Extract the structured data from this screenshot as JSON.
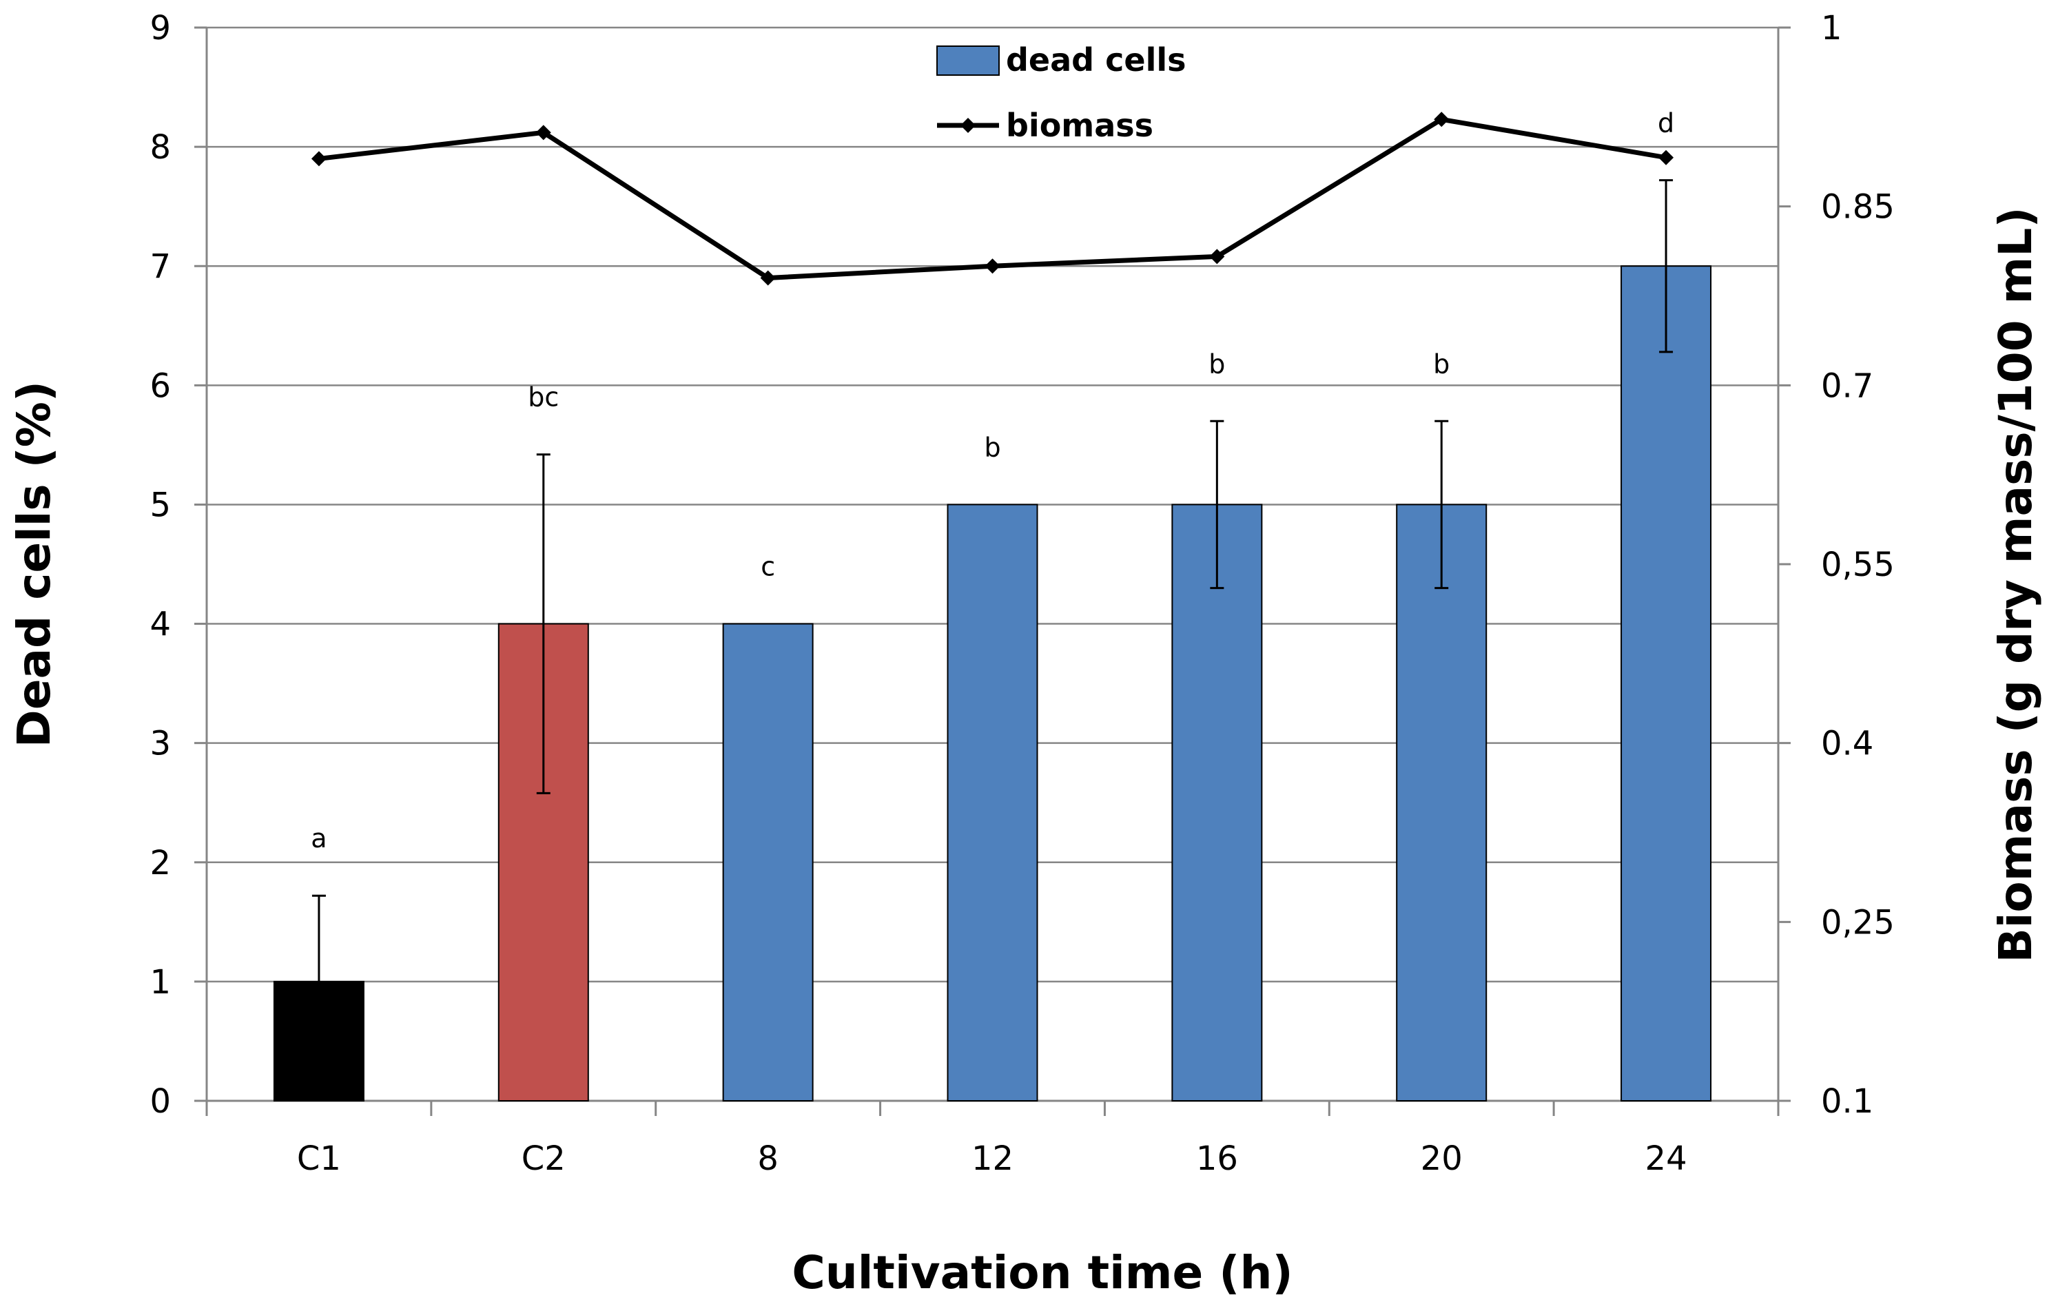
{
  "chart_data": {
    "type": "bar",
    "categories": [
      "C1",
      "C2",
      "8",
      "12",
      "16",
      "20",
      "24"
    ],
    "xlabel": "Cultivation time (h)",
    "ylabel": "Dead cells (%)",
    "ylabel_right": "Biomass (g dry mass/100 mL)",
    "ylim": [
      0,
      9
    ],
    "yticks": [
      0,
      1,
      2,
      3,
      4,
      5,
      6,
      7,
      8,
      9
    ],
    "ylim_right": [
      0.1,
      1
    ],
    "yticks_right": [
      "0.1",
      "0,25",
      "0.4",
      "0,55",
      "0.7",
      "0.85",
      "1"
    ],
    "grid": true,
    "legend_position": "top-center",
    "series": [
      {
        "name": "dead cells",
        "kind": "bar",
        "values": [
          1,
          4,
          4,
          5,
          5,
          5,
          7
        ],
        "error": [
          0.72,
          1.42,
          0,
          0,
          0.7,
          0.7,
          0.72
        ],
        "colors": [
          "#000000",
          "#C0504D",
          "#4F81BD",
          "#4F81BD",
          "#4F81BD",
          "#4F81BD",
          "#4F81BD"
        ],
        "significance": [
          "a",
          "bc",
          "c",
          "b",
          "b",
          "b",
          "d"
        ]
      },
      {
        "name": "biomass",
        "kind": "line",
        "axis": "right",
        "values": [
          0.89,
          0.912,
          0.79,
          0.8,
          0.808,
          0.923,
          0.891
        ],
        "color": "#000000"
      }
    ],
    "legend": {
      "bar_label": "dead cells",
      "line_label": "biomass",
      "bar_color": "#4F81BD"
    }
  }
}
